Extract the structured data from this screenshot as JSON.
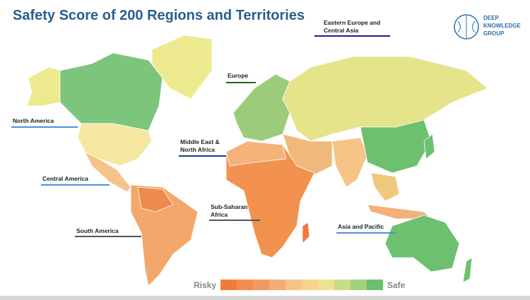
{
  "header": {
    "title": "Safety Score of 200 Regions and Territories",
    "logo": [
      "DEEP",
      "KNOWLEDGE",
      "GROUP"
    ]
  },
  "regions": [
    {
      "lines": [
        "Eastern Europe and",
        "Central Asia"
      ]
    },
    {
      "lines": [
        "Europe"
      ]
    },
    {
      "lines": [
        "North America"
      ]
    },
    {
      "lines": [
        "Middle East &",
        "North Africa"
      ]
    },
    {
      "lines": [
        "Central America"
      ]
    },
    {
      "lines": [
        "Sub-Saharan",
        "Africa"
      ]
    },
    {
      "lines": [
        "South America"
      ]
    },
    {
      "lines": [
        "Asia and Pacific"
      ]
    }
  ],
  "legend": {
    "low": "Risky",
    "high": "Safe"
  }
}
